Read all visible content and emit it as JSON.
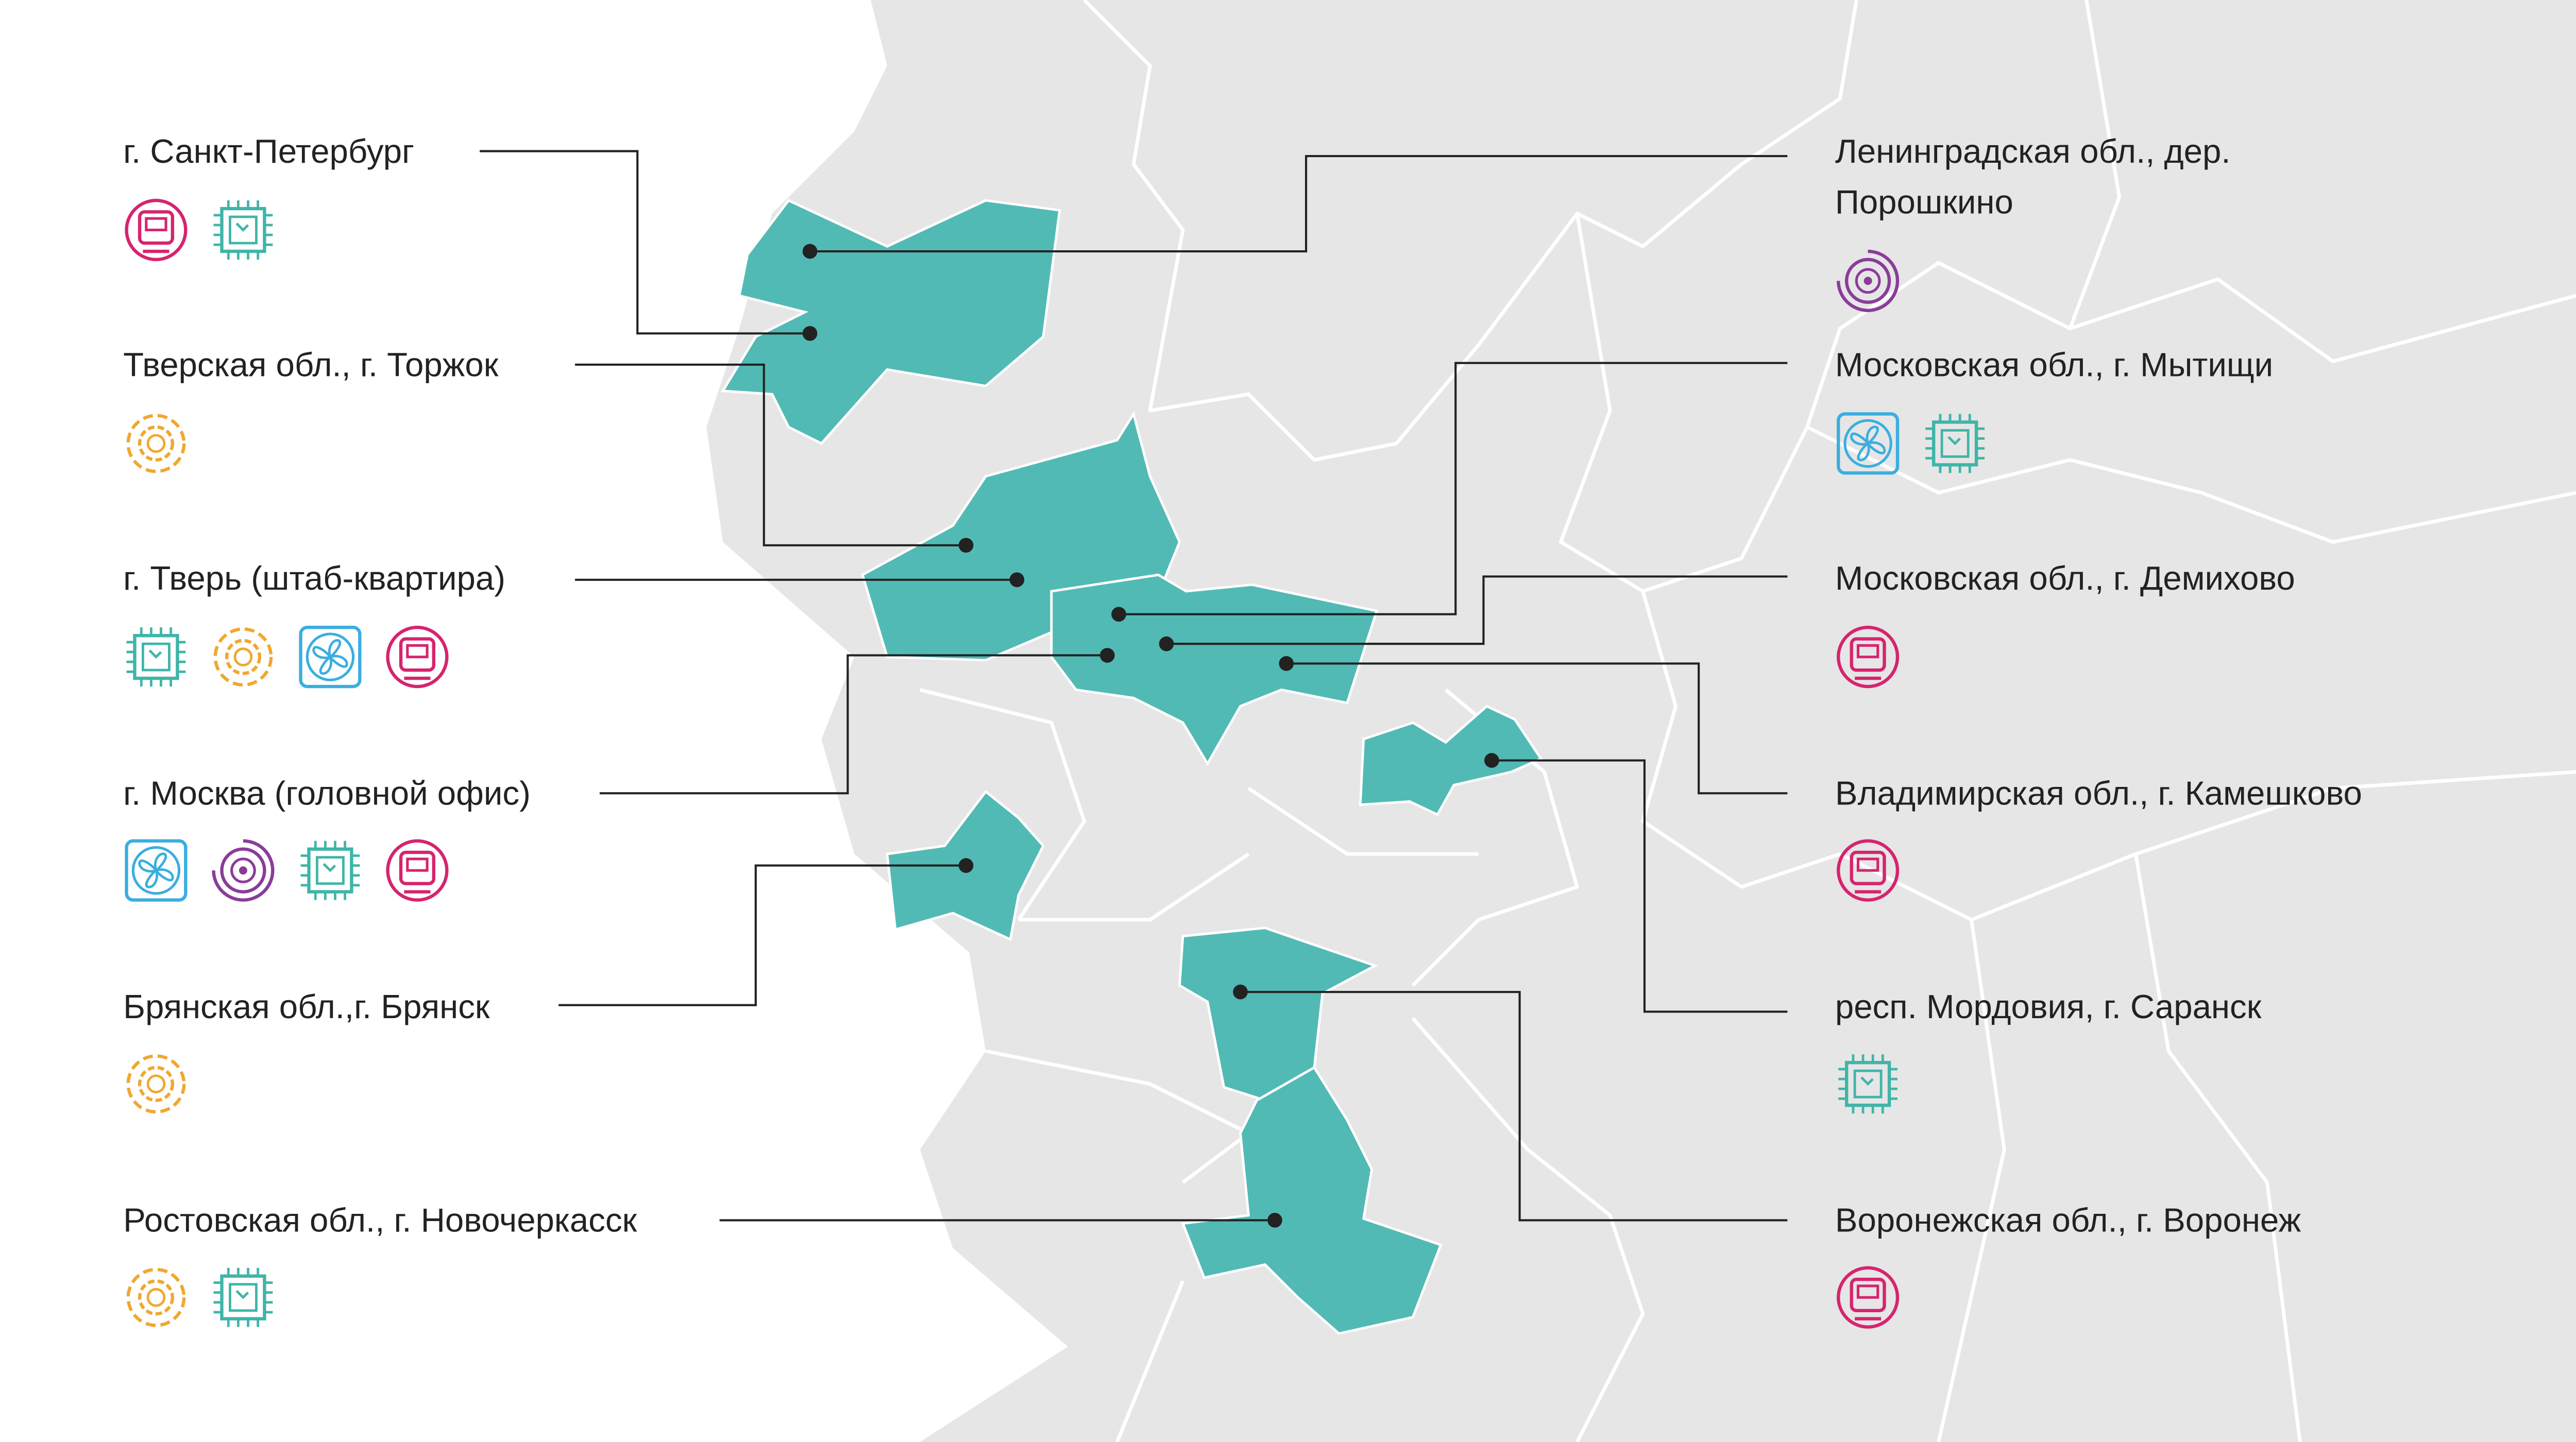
{
  "left_labels": [
    "г. Санкт-Петербург",
    "Тверская обл., г. Торжок",
    "г. Тверь (штаб-квартира)",
    "г. Москва (головной офис)",
    "Брянская обл.,г. Брянск",
    "Ростовская обл., г. Новочеркасск"
  ],
  "right_labels": [
    [
      "Ленинградская обл., дер.",
      "Порошкино"
    ],
    [
      "Московская обл., г. Мытищи"
    ],
    [
      "Московская обл., г. Демихово"
    ],
    [
      "Владимирская обл., г. Камешково"
    ],
    [
      "респ. Мордовия, г. Саранск"
    ],
    [
      "Воронежская обл., г. Воронеж"
    ]
  ]
}
